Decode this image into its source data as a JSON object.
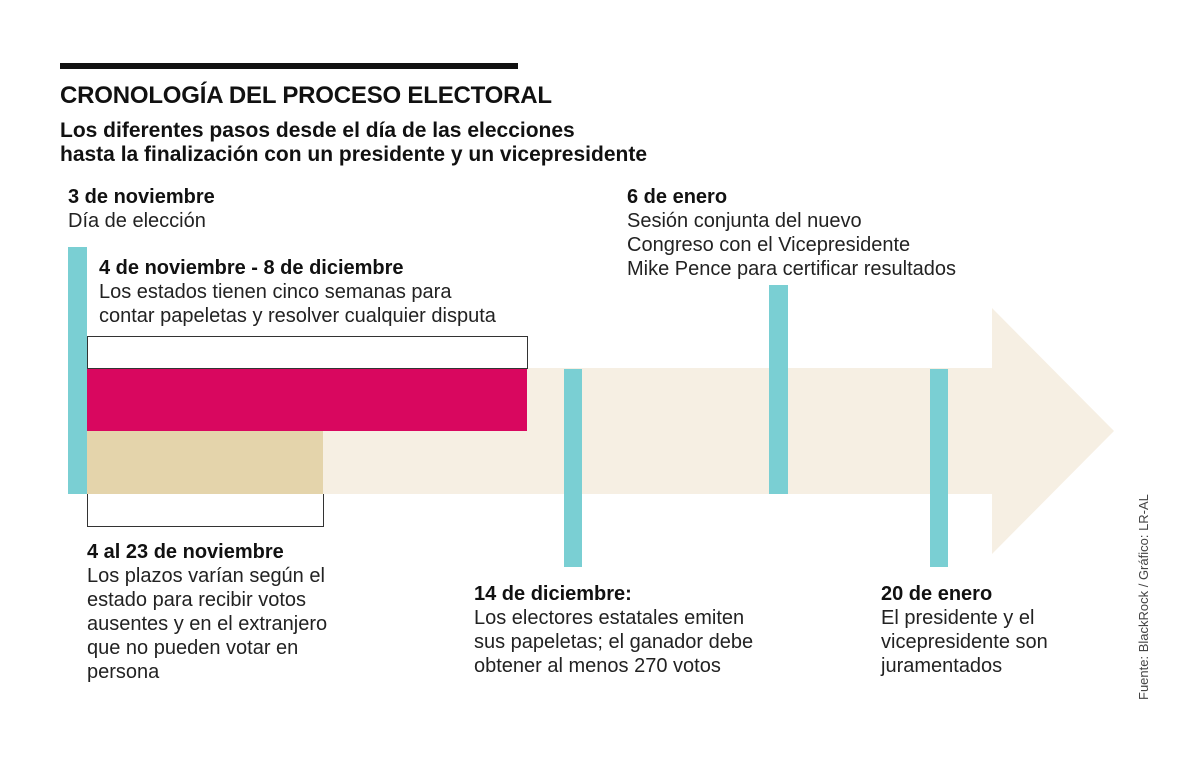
{
  "header": {
    "title": "CRONOLOGÍA DEL PROCESO ELECTORAL",
    "subtitle_line1": "Los diferentes pasos desde el día de las elecciones",
    "subtitle_line2": "hasta la finalización con un presidente y un vicepresidente"
  },
  "events": {
    "election": {
      "date": "3 de noviembre",
      "text": "Día de elección"
    },
    "count": {
      "date": "4 de noviembre - 8 de diciembre",
      "line1": "Los estados tienen cinco semanas para",
      "line2": "contar papeletas y resolver cualquier disputa"
    },
    "absentee": {
      "date": "4 al 23 de noviembre",
      "line1": "Los plazos varían según el",
      "line2": "estado para recibir votos",
      "line3": "ausentes y en el extranjero",
      "line4": "que no pueden votar en",
      "line5": "persona"
    },
    "electors": {
      "date": "14 de diciembre:",
      "line1": "Los electores estatales emiten",
      "line2": "sus papeletas; el ganador debe",
      "line3": "obtener al menos 270 votos"
    },
    "congress": {
      "date": "6 de enero",
      "line1": "Sesión conjunta del nuevo",
      "line2": "Congreso con el Vicepresidente",
      "line3": "Mike Pence para certificar resultados"
    },
    "inauguration": {
      "date": "20 de enero",
      "line1": "El presidente y el",
      "line2": "vicepresidente son",
      "line3": "juramentados"
    }
  },
  "footer": {
    "source": "Fuente: BlackRock / Gráfico: LR-AL"
  },
  "colors": {
    "arrow": "#f6efe3",
    "marker": "#7acfd3",
    "count_bar": "#d9075f",
    "absentee_bar": "#e4d4ab",
    "text": "#111111"
  }
}
